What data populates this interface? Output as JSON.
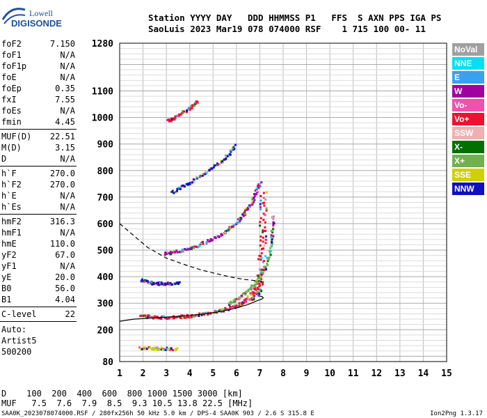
{
  "logo": {
    "line1": "Lowell",
    "line2": "DIGISONDE"
  },
  "header": {
    "labels": "Station YYYY DAY   DDD HHMMSS P1   FFS  S AXN PPS IGA PS",
    "values": "SaoLuis 2023 Mar19 078 074000 RSF    1 715 100 00- 11"
  },
  "params_group1": [
    {
      "name": "foF2",
      "value": "7.150"
    },
    {
      "name": "foF1",
      "value": "N/A"
    },
    {
      "name": "foF1p",
      "value": "N/A"
    },
    {
      "name": "foE",
      "value": "N/A"
    },
    {
      "name": "foEp",
      "value": "0.35"
    },
    {
      "name": "fxI",
      "value": "7.55"
    },
    {
      "name": "foEs",
      "value": "N/A"
    },
    {
      "name": "fmin",
      "value": "4.45"
    }
  ],
  "params_group2": [
    {
      "name": "MUF(D)",
      "value": "22.51"
    },
    {
      "name": "M(D)",
      "value": "3.15"
    },
    {
      "name": "D",
      "value": "N/A"
    }
  ],
  "params_group3": [
    {
      "name": "h`F",
      "value": "270.0"
    },
    {
      "name": "h`F2",
      "value": "270.0"
    },
    {
      "name": "h`E",
      "value": "N/A"
    },
    {
      "name": "h`Es",
      "value": "N/A"
    }
  ],
  "params_group4": [
    {
      "name": "hmF2",
      "value": "316.3"
    },
    {
      "name": "hmF1",
      "value": "N/A"
    },
    {
      "name": "hmE",
      "value": "110.0"
    },
    {
      "name": "yF2",
      "value": "67.0"
    },
    {
      "name": "yF1",
      "value": "N/A"
    },
    {
      "name": "yE",
      "value": "20.0"
    },
    {
      "name": "B0",
      "value": "56.0"
    },
    {
      "name": "B1",
      "value": "4.04"
    }
  ],
  "clevel": {
    "name": "C-level",
    "value": "22"
  },
  "auto": [
    "Auto:",
    "Artist5",
    "500200"
  ],
  "legend": [
    {
      "label": "NoVal",
      "color": "#a0a0a0"
    },
    {
      "label": "NNE",
      "color": "#00e0f0"
    },
    {
      "label": "E",
      "color": "#3aa0f0"
    },
    {
      "label": "W",
      "color": "#a000a0"
    },
    {
      "label": "Vo-",
      "color": "#f050b0"
    },
    {
      "label": "Vo+",
      "color": "#f01030"
    },
    {
      "label": "SSW",
      "color": "#f0b0b0"
    },
    {
      "label": "X-",
      "color": "#007000"
    },
    {
      "label": "X+",
      "color": "#70b050"
    },
    {
      "label": "SSE",
      "color": "#d0d000"
    },
    {
      "label": "NNW",
      "color": "#1010c0"
    }
  ],
  "bottom": {
    "d_line": "D    100  200  400  600  800 1000 1500 3000 [km]",
    "muf_line": "MUF   7.5  7.6  7.9  8.5  9.3 10.5 13.8 22.5 [MHz]"
  },
  "footer": "SAA0K_2023078074000.RSF / 280fx256h 50 kHz 5.0 km / DPS-4 SAA0K 903 / 2.6 S 315.8 E",
  "version": "Ion2Png 1.3.17",
  "chart_data": {
    "type": "scatter",
    "xlim": [
      1,
      15
    ],
    "ylim": [
      80,
      1280
    ],
    "x_ticks": [
      1,
      2,
      3,
      4,
      5,
      6,
      7,
      8,
      9,
      10,
      11,
      12,
      13,
      14,
      15
    ],
    "y_ticks": [
      80,
      200,
      300,
      400,
      500,
      600,
      700,
      800,
      900,
      1000,
      1100,
      1280
    ],
    "grid": true,
    "traces": [
      {
        "name": "O-trace F",
        "points": [
          [
            1.9,
            260
          ],
          [
            2.2,
            252
          ],
          [
            2.6,
            250
          ],
          [
            3.0,
            250
          ],
          [
            3.5,
            252
          ],
          [
            4.0,
            256
          ],
          [
            4.5,
            262
          ],
          [
            5.0,
            270
          ],
          [
            5.5,
            280
          ],
          [
            5.9,
            290
          ],
          [
            6.2,
            305
          ],
          [
            6.5,
            320
          ],
          [
            6.7,
            335
          ],
          [
            6.85,
            350
          ],
          [
            6.95,
            380
          ],
          [
            7.0,
            420
          ],
          [
            7.05,
            480
          ],
          [
            7.1,
            560
          ],
          [
            7.12,
            650
          ],
          [
            7.15,
            720
          ]
        ]
      },
      {
        "name": "second hop",
        "points": [
          [
            2.9,
            490
          ],
          [
            3.3,
            495
          ],
          [
            3.8,
            505
          ],
          [
            4.3,
            520
          ],
          [
            4.8,
            540
          ],
          [
            5.3,
            560
          ],
          [
            5.7,
            585
          ],
          [
            6.0,
            610
          ],
          [
            6.3,
            640
          ],
          [
            6.6,
            680
          ],
          [
            6.8,
            720
          ],
          [
            7.0,
            760
          ]
        ]
      },
      {
        "name": "third hop",
        "points": [
          [
            3.2,
            720
          ],
          [
            3.7,
            745
          ],
          [
            4.2,
            770
          ],
          [
            4.7,
            800
          ],
          [
            5.2,
            830
          ],
          [
            5.6,
            860
          ],
          [
            5.9,
            900
          ]
        ]
      },
      {
        "name": "fourth hop",
        "points": [
          [
            3.0,
            990
          ],
          [
            3.3,
            1000
          ],
          [
            3.6,
            1020
          ],
          [
            4.0,
            1040
          ],
          [
            4.3,
            1065
          ]
        ]
      },
      {
        "name": "Es region",
        "points": [
          [
            1.8,
            135
          ],
          [
            2.2,
            133
          ],
          [
            2.6,
            132
          ],
          [
            3.0,
            131
          ],
          [
            3.5,
            131
          ]
        ]
      },
      {
        "name": "spread 380",
        "points": [
          [
            1.9,
            390
          ],
          [
            2.3,
            380
          ],
          [
            2.7,
            377
          ],
          [
            3.1,
            377
          ],
          [
            3.5,
            378
          ]
        ]
      },
      {
        "name": "X-trace",
        "points": [
          [
            5.6,
            300
          ],
          [
            6.0,
            320
          ],
          [
            6.3,
            340
          ],
          [
            6.6,
            360
          ],
          [
            6.9,
            390
          ],
          [
            7.2,
            430
          ],
          [
            7.4,
            500
          ],
          [
            7.5,
            560
          ],
          [
            7.55,
            640
          ]
        ]
      }
    ],
    "profile": [
      [
        1.0,
        232
      ],
      [
        1.6,
        240
      ],
      [
        2.5,
        245
      ],
      [
        3.5,
        250
      ],
      [
        4.5,
        258
      ],
      [
        5.3,
        268
      ],
      [
        6.0,
        282
      ],
      [
        6.5,
        295
      ],
      [
        6.9,
        310
      ],
      [
        7.1,
        316
      ],
      [
        7.15,
        320
      ],
      [
        7.1,
        325
      ],
      [
        6.9,
        328
      ]
    ],
    "dashed_curve": [
      [
        1.0,
        600
      ],
      [
        1.6,
        555
      ],
      [
        2.2,
        510
      ],
      [
        3.0,
        470
      ],
      [
        3.8,
        445
      ],
      [
        4.5,
        425
      ],
      [
        5.2,
        410
      ],
      [
        5.8,
        398
      ],
      [
        6.3,
        390
      ],
      [
        6.8,
        385
      ],
      [
        7.1,
        383
      ]
    ]
  }
}
